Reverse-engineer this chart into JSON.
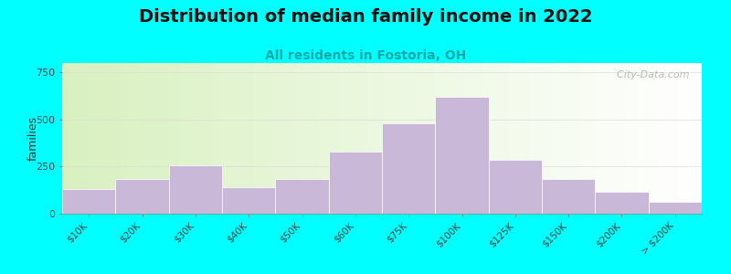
{
  "title": "Distribution of median family income in 2022",
  "subtitle": "All residents in Fostoria, OH",
  "ylabel": "families",
  "background_outer": "#00FFFF",
  "background_inner_left": "#d8f0c0",
  "background_inner_right": "#ffffff",
  "bar_color": "#c9b8d8",
  "bar_edgecolor": "#ffffff",
  "categories": [
    "$10K",
    "$20K",
    "$30K",
    "$40K",
    "$50K",
    "$60K",
    "$75K",
    "$100K",
    "$125K",
    "$150K",
    "$200K",
    "> $200K"
  ],
  "values": [
    130,
    185,
    255,
    140,
    185,
    330,
    480,
    620,
    285,
    185,
    115,
    65
  ],
  "yticks": [
    0,
    250,
    500,
    750
  ],
  "ylim": [
    0,
    800
  ],
  "title_fontsize": 14,
  "subtitle_fontsize": 10,
  "subtitle_color": "#00AAAA",
  "watermark_text": "  City-Data.com",
  "watermark_color": "#aaaaaa"
}
